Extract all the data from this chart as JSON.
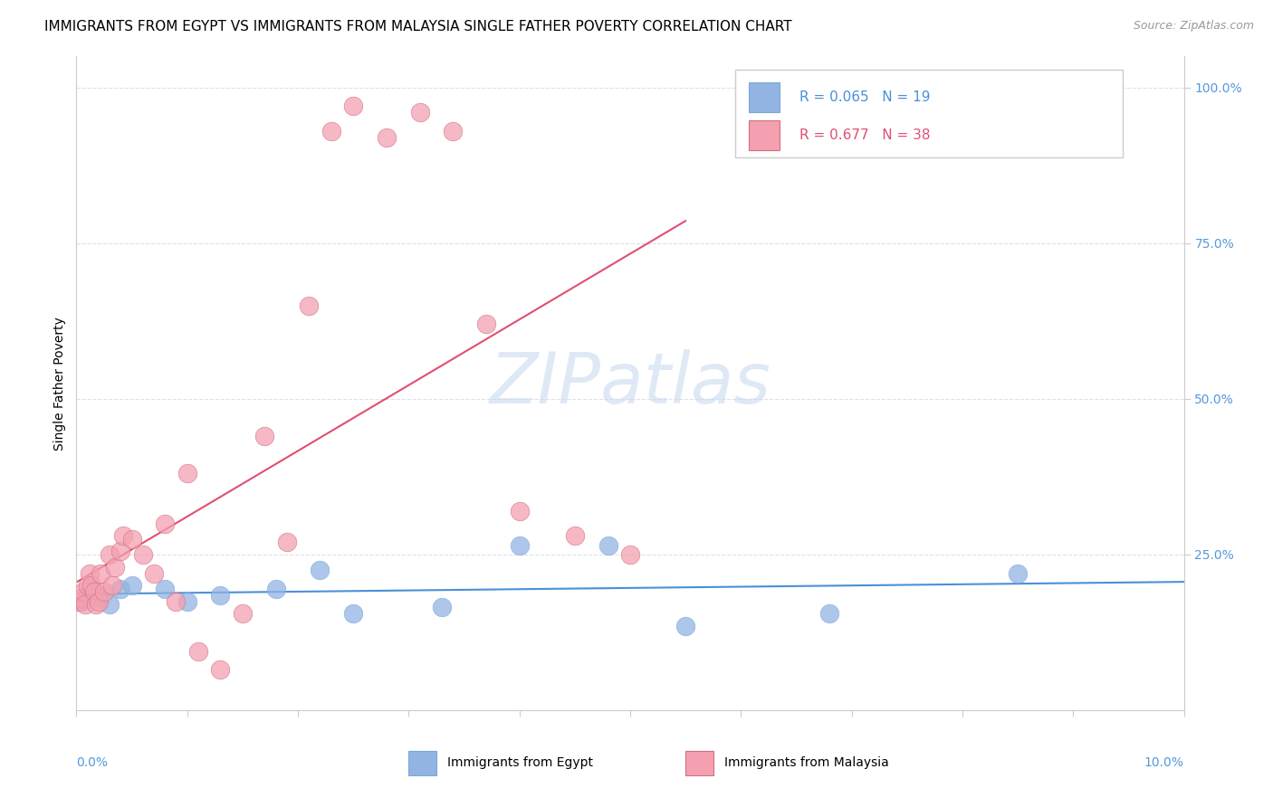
{
  "title": "IMMIGRANTS FROM EGYPT VS IMMIGRANTS FROM MALAYSIA SINGLE FATHER POVERTY CORRELATION CHART",
  "source": "Source: ZipAtlas.com",
  "ylabel": "Single Father Poverty",
  "legend_label1": "Immigrants from Egypt",
  "legend_label2": "Immigrants from Malaysia",
  "R_egypt": 0.065,
  "N_egypt": 19,
  "R_malaysia": 0.677,
  "N_malaysia": 38,
  "color_egypt": "#92b4e3",
  "color_malaysia": "#f4a0b0",
  "trendline_egypt": "#4a90d9",
  "trendline_malaysia": "#e05070",
  "egypt_x": [
    0.0005,
    0.001,
    0.0015,
    0.002,
    0.003,
    0.004,
    0.005,
    0.008,
    0.01,
    0.013,
    0.018,
    0.022,
    0.025,
    0.033,
    0.04,
    0.048,
    0.055,
    0.068,
    0.085
  ],
  "egypt_y": [
    0.175,
    0.185,
    0.19,
    0.18,
    0.17,
    0.195,
    0.2,
    0.195,
    0.175,
    0.185,
    0.195,
    0.225,
    0.155,
    0.165,
    0.265,
    0.265,
    0.135,
    0.155,
    0.22
  ],
  "malaysia_x": [
    0.0002,
    0.0004,
    0.0006,
    0.0008,
    0.001,
    0.0012,
    0.0014,
    0.0016,
    0.0018,
    0.002,
    0.0022,
    0.0025,
    0.003,
    0.0032,
    0.0035,
    0.004,
    0.0042,
    0.005,
    0.006,
    0.007,
    0.008,
    0.009,
    0.01,
    0.011,
    0.013,
    0.015,
    0.017,
    0.019,
    0.021,
    0.023,
    0.025,
    0.028,
    0.031,
    0.034,
    0.037,
    0.04,
    0.045,
    0.05
  ],
  "malaysia_y": [
    0.175,
    0.18,
    0.19,
    0.17,
    0.2,
    0.22,
    0.2,
    0.19,
    0.17,
    0.175,
    0.22,
    0.19,
    0.25,
    0.2,
    0.23,
    0.255,
    0.28,
    0.275,
    0.25,
    0.22,
    0.3,
    0.175,
    0.38,
    0.095,
    0.065,
    0.155,
    0.44,
    0.27,
    0.65,
    0.93,
    0.97,
    0.92,
    0.96,
    0.93,
    0.62,
    0.32,
    0.28,
    0.25
  ],
  "xlim": [
    0.0,
    0.1
  ],
  "ylim": [
    0.0,
    1.05
  ],
  "background_color": "#ffffff",
  "grid_color": "#dde0e8",
  "tick_color": "#5599dd",
  "title_fontsize": 11,
  "axis_label_fontsize": 10,
  "tick_fontsize": 10,
  "legend_fontsize": 11
}
